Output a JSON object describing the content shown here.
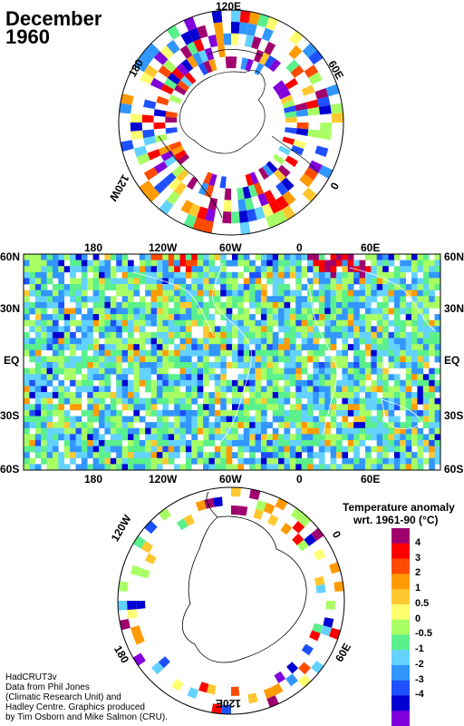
{
  "title": {
    "line1": "December",
    "line2": "1960"
  },
  "arctic_map": {
    "lon_labels": [
      "120E",
      "180",
      "60E",
      "120W",
      "0"
    ]
  },
  "world_map": {
    "top_lon_labels": [
      "180",
      "120W",
      "60W",
      "0",
      "60E"
    ],
    "bottom_lon_labels": [
      "180",
      "120W",
      "60W",
      "0",
      "60E"
    ],
    "lat_labels": [
      "60N",
      "30N",
      "EQ",
      "30S",
      "60S"
    ]
  },
  "antarctic_map": {
    "lon_labels": [
      "120W",
      "0",
      "180",
      "60E",
      "120E"
    ]
  },
  "legend": {
    "title_line1": "Temperature anomaly",
    "title_line2": "wrt. 1961-90  (°C)",
    "labels": [
      "4",
      "3",
      "2",
      "1",
      "0.5",
      "0",
      "-0.5",
      "-1",
      "-2",
      "-3",
      "-4"
    ],
    "colors": [
      "#a0006e",
      "#ff0000",
      "#ff4a00",
      "#ff9a00",
      "#ffc830",
      "#ffff70",
      "#a8ff64",
      "#5af08c",
      "#64d2ff",
      "#3296ff",
      "#1e50ff",
      "#0000d2",
      "#8200dc"
    ]
  },
  "credit": {
    "line1": "HadCRUT3v",
    "line2": "Data from Phil Jones",
    "line3": "(Climatic Research Unit) and",
    "line4": "Hadley Centre.  Graphics produced",
    "line5": "by Tim Osborn and Mike Salmon (CRU)."
  }
}
